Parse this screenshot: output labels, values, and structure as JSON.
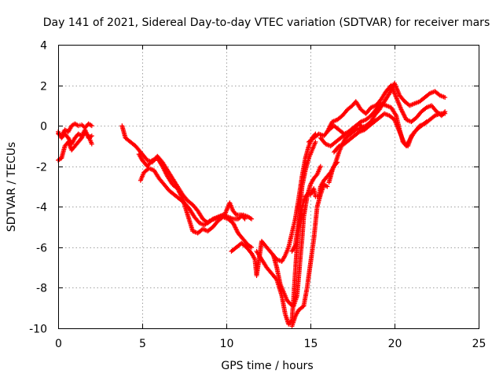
{
  "chart_data": {
    "type": "scatter",
    "title": "Day 141 of 2021, Sidereal Day-to-day VTEC variation (SDTVAR) for receiver mars",
    "xlabel": "GPS time / hours",
    "ylabel": "SDTVAR / TECUs",
    "xlim": [
      0,
      25
    ],
    "ylim": [
      -10,
      4
    ],
    "xticks": [
      "0",
      "5",
      "10",
      "15",
      "20",
      "25"
    ],
    "yticks": [
      "-10",
      "-8",
      "-6",
      "-4",
      "-2",
      "0",
      "2",
      "4"
    ],
    "grid": true,
    "marker": "plus",
    "color": "#ff0000",
    "series": [
      {
        "points": [
          [
            0.0,
            -0.4
          ],
          [
            0.2,
            -0.5
          ],
          [
            0.4,
            -0.2
          ],
          [
            0.6,
            -0.3
          ],
          [
            0.8,
            0.0
          ],
          [
            1.0,
            0.1
          ],
          [
            1.2,
            0.0
          ],
          [
            1.4,
            0.05
          ],
          [
            1.6,
            -0.1
          ],
          [
            1.8,
            0.1
          ],
          [
            2.0,
            0.0
          ]
        ]
      },
      {
        "points": [
          [
            0.0,
            -1.7
          ],
          [
            0.2,
            -1.6
          ],
          [
            0.4,
            -1.0
          ],
          [
            0.6,
            -0.8
          ],
          [
            0.8,
            -1.2
          ],
          [
            1.0,
            -1.0
          ],
          [
            1.2,
            -0.8
          ],
          [
            1.4,
            -0.6
          ],
          [
            1.6,
            -0.3
          ],
          [
            1.8,
            -0.5
          ],
          [
            2.0,
            -0.9
          ]
        ]
      },
      {
        "points": [
          [
            0.0,
            -0.3
          ],
          [
            0.2,
            -0.6
          ],
          [
            0.4,
            -0.4
          ],
          [
            0.6,
            -0.6
          ],
          [
            0.8,
            -0.9
          ],
          [
            1.0,
            -0.6
          ],
          [
            1.2,
            -0.4
          ],
          [
            1.4,
            -0.5
          ],
          [
            1.6,
            -0.2
          ],
          [
            1.8,
            -0.6
          ],
          [
            2.0,
            -0.5
          ]
        ]
      },
      {
        "points": [
          [
            3.8,
            0.0
          ],
          [
            4.0,
            -0.6
          ],
          [
            4.3,
            -0.8
          ],
          [
            4.6,
            -1.0
          ],
          [
            5.0,
            -1.4
          ],
          [
            5.3,
            -1.7
          ],
          [
            5.6,
            -1.8
          ],
          [
            5.9,
            -1.5
          ],
          [
            6.2,
            -1.8
          ],
          [
            6.5,
            -2.2
          ],
          [
            6.8,
            -2.6
          ],
          [
            7.1,
            -3.0
          ],
          [
            7.4,
            -3.4
          ],
          [
            7.7,
            -3.7
          ],
          [
            8.0,
            -3.9
          ],
          [
            8.3,
            -4.2
          ],
          [
            8.6,
            -4.6
          ],
          [
            8.9,
            -4.8
          ],
          [
            9.2,
            -4.6
          ],
          [
            9.5,
            -4.5
          ],
          [
            9.8,
            -4.4
          ],
          [
            10.1,
            -4.5
          ],
          [
            10.4,
            -4.6
          ],
          [
            10.7,
            -4.6
          ],
          [
            11.0,
            -4.4
          ],
          [
            11.3,
            -4.5
          ],
          [
            11.5,
            -4.6
          ]
        ]
      },
      {
        "points": [
          [
            4.8,
            -1.4
          ],
          [
            5.0,
            -1.7
          ],
          [
            5.3,
            -2.0
          ],
          [
            5.6,
            -1.7
          ],
          [
            5.9,
            -1.6
          ],
          [
            6.2,
            -2.0
          ],
          [
            6.5,
            -2.5
          ],
          [
            6.8,
            -2.9
          ],
          [
            7.1,
            -3.1
          ],
          [
            7.4,
            -3.6
          ],
          [
            7.7,
            -4.4
          ],
          [
            8.0,
            -5.2
          ],
          [
            8.3,
            -5.3
          ],
          [
            8.6,
            -5.1
          ],
          [
            8.9,
            -5.2
          ],
          [
            9.2,
            -5.0
          ],
          [
            9.5,
            -4.7
          ],
          [
            9.8,
            -4.5
          ],
          [
            10.1,
            -4.6
          ],
          [
            10.4,
            -4.8
          ],
          [
            10.7,
            -5.3
          ],
          [
            11.0,
            -5.6
          ],
          [
            11.3,
            -5.9
          ],
          [
            11.5,
            -6.0
          ]
        ]
      },
      {
        "points": [
          [
            4.9,
            -2.7
          ],
          [
            5.1,
            -2.3
          ],
          [
            5.4,
            -2.1
          ],
          [
            5.7,
            -2.2
          ],
          [
            6.0,
            -2.6
          ],
          [
            6.3,
            -2.9
          ],
          [
            6.6,
            -3.2
          ],
          [
            6.9,
            -3.4
          ],
          [
            7.2,
            -3.6
          ],
          [
            7.5,
            -3.8
          ],
          [
            7.8,
            -4.1
          ],
          [
            8.1,
            -4.5
          ],
          [
            8.4,
            -4.8
          ],
          [
            8.7,
            -4.9
          ],
          [
            9.0,
            -4.7
          ],
          [
            9.3,
            -4.6
          ],
          [
            9.6,
            -4.5
          ],
          [
            9.9,
            -4.4
          ],
          [
            10.2,
            -3.8
          ],
          [
            10.4,
            -4.2
          ],
          [
            10.6,
            -4.4
          ],
          [
            10.9,
            -4.4
          ],
          [
            11.1,
            -4.6
          ]
        ]
      },
      {
        "points": [
          [
            10.3,
            -6.2
          ],
          [
            10.6,
            -6.0
          ],
          [
            10.9,
            -5.8
          ],
          [
            11.2,
            -6.0
          ],
          [
            11.5,
            -6.3
          ],
          [
            11.7,
            -6.6
          ],
          [
            11.8,
            -7.4
          ],
          [
            12.1,
            -5.7
          ],
          [
            12.4,
            -6.0
          ],
          [
            12.7,
            -6.3
          ],
          [
            13.0,
            -6.6
          ],
          [
            13.3,
            -6.7
          ],
          [
            13.5,
            -6.4
          ],
          [
            13.7,
            -6.0
          ],
          [
            13.9,
            -5.3
          ],
          [
            14.1,
            -4.6
          ],
          [
            14.3,
            -3.6
          ],
          [
            14.5,
            -2.5
          ],
          [
            14.7,
            -1.6
          ],
          [
            14.9,
            -1.0
          ],
          [
            15.1,
            -0.6
          ],
          [
            15.3,
            -0.4
          ]
        ]
      },
      {
        "points": [
          [
            11.8,
            -6.2
          ],
          [
            12.1,
            -6.6
          ],
          [
            12.4,
            -7.0
          ],
          [
            12.7,
            -7.3
          ],
          [
            13.0,
            -7.6
          ],
          [
            13.3,
            -8.4
          ],
          [
            13.5,
            -9.3
          ],
          [
            13.7,
            -9.8
          ],
          [
            13.9,
            -9.6
          ],
          [
            14.0,
            -8.5
          ],
          [
            14.1,
            -7.2
          ],
          [
            14.2,
            -6.0
          ],
          [
            14.3,
            -5.0
          ],
          [
            14.4,
            -4.0
          ],
          [
            14.5,
            -3.0
          ],
          [
            14.7,
            -2.2
          ],
          [
            14.9,
            -1.6
          ],
          [
            15.1,
            -1.2
          ],
          [
            15.3,
            -0.8
          ]
        ]
      },
      {
        "points": [
          [
            12.8,
            -6.4
          ],
          [
            13.0,
            -7.0
          ],
          [
            13.2,
            -7.8
          ],
          [
            13.4,
            -8.2
          ],
          [
            13.6,
            -8.6
          ],
          [
            13.8,
            -8.8
          ],
          [
            14.0,
            -8.9
          ],
          [
            14.2,
            -8.4
          ],
          [
            14.3,
            -7.5
          ],
          [
            14.4,
            -6.5
          ],
          [
            14.5,
            -5.6
          ],
          [
            14.6,
            -4.5
          ],
          [
            14.8,
            -3.5
          ],
          [
            15.0,
            -2.9
          ],
          [
            15.2,
            -2.6
          ],
          [
            15.4,
            -2.4
          ],
          [
            15.6,
            -2.0
          ]
        ]
      },
      {
        "points": [
          [
            13.9,
            -6.2
          ],
          [
            14.1,
            -5.9
          ],
          [
            14.2,
            -5.3
          ],
          [
            14.4,
            -4.6
          ],
          [
            14.5,
            -4.0
          ],
          [
            14.7,
            -3.5
          ],
          [
            14.9,
            -3.3
          ],
          [
            15.0,
            -3.4
          ],
          [
            15.2,
            -3.1
          ],
          [
            15.3,
            -3.5
          ],
          [
            15.5,
            -3.5
          ],
          [
            15.6,
            -3.0
          ],
          [
            15.8,
            -2.7
          ],
          [
            16.0,
            -2.5
          ],
          [
            16.2,
            -2.3
          ],
          [
            16.4,
            -2.0
          ],
          [
            16.6,
            -1.8
          ]
        ]
      },
      {
        "points": [
          [
            13.9,
            -9.9
          ],
          [
            14.1,
            -9.4
          ],
          [
            14.3,
            -9.1
          ],
          [
            14.6,
            -8.9
          ],
          [
            14.8,
            -8.0
          ],
          [
            15.0,
            -6.8
          ],
          [
            15.2,
            -5.6
          ],
          [
            15.4,
            -4.0
          ],
          [
            15.6,
            -3.4
          ],
          [
            15.8,
            -2.9
          ],
          [
            16.0,
            -3.0
          ]
        ]
      },
      {
        "points": [
          [
            14.9,
            -0.8
          ],
          [
            15.2,
            -0.6
          ],
          [
            15.5,
            -0.4
          ],
          [
            15.8,
            -0.5
          ],
          [
            16.1,
            -0.2
          ],
          [
            16.4,
            0.0
          ],
          [
            16.7,
            -0.2
          ],
          [
            17.0,
            -0.4
          ],
          [
            17.3,
            -0.3
          ],
          [
            17.6,
            -0.1
          ],
          [
            17.9,
            0.1
          ],
          [
            18.2,
            -0.2
          ],
          [
            18.5,
            0.0
          ],
          [
            18.8,
            0.5
          ],
          [
            19.1,
            0.8
          ],
          [
            19.4,
            1.2
          ],
          [
            19.7,
            1.6
          ],
          [
            20.0,
            2.1
          ],
          [
            20.3,
            1.5
          ],
          [
            20.6,
            1.2
          ],
          [
            20.9,
            1.0
          ],
          [
            21.2,
            1.1
          ],
          [
            21.5,
            1.2
          ],
          [
            21.8,
            1.4
          ],
          [
            22.1,
            1.6
          ],
          [
            22.4,
            1.7
          ],
          [
            22.7,
            1.5
          ],
          [
            23.0,
            1.4
          ]
        ]
      },
      {
        "points": [
          [
            15.6,
            -0.6
          ],
          [
            15.9,
            -0.9
          ],
          [
            16.2,
            -1.0
          ],
          [
            16.5,
            -0.8
          ],
          [
            16.8,
            -0.6
          ],
          [
            17.1,
            -0.4
          ],
          [
            17.4,
            -0.2
          ],
          [
            17.7,
            0.0
          ],
          [
            18.0,
            0.2
          ],
          [
            18.3,
            0.3
          ],
          [
            18.6,
            0.5
          ],
          [
            18.9,
            0.8
          ],
          [
            19.2,
            1.1
          ],
          [
            19.5,
            1.0
          ],
          [
            19.8,
            0.9
          ],
          [
            20.1,
            0.5
          ],
          [
            20.3,
            -0.2
          ],
          [
            20.5,
            -0.8
          ],
          [
            20.7,
            -1.0
          ],
          [
            20.9,
            -0.7
          ],
          [
            21.2,
            -0.3
          ],
          [
            21.5,
            0.0
          ],
          [
            21.8,
            0.1
          ],
          [
            22.1,
            0.3
          ],
          [
            22.4,
            0.5
          ],
          [
            22.7,
            0.6
          ],
          [
            23.0,
            0.6
          ]
        ]
      },
      {
        "points": [
          [
            16.0,
            -0.3
          ],
          [
            16.3,
            0.2
          ],
          [
            16.6,
            0.3
          ],
          [
            16.9,
            0.5
          ],
          [
            17.2,
            0.8
          ],
          [
            17.5,
            1.0
          ],
          [
            17.7,
            1.2
          ],
          [
            18.0,
            0.8
          ],
          [
            18.3,
            0.6
          ],
          [
            18.6,
            0.9
          ],
          [
            18.9,
            1.0
          ],
          [
            19.2,
            1.3
          ],
          [
            19.5,
            1.7
          ],
          [
            19.8,
            2.0
          ],
          [
            20.1,
            1.4
          ],
          [
            20.4,
            0.8
          ],
          [
            20.7,
            0.3
          ],
          [
            21.0,
            0.2
          ],
          [
            21.3,
            0.4
          ],
          [
            21.6,
            0.7
          ],
          [
            21.9,
            0.9
          ],
          [
            22.2,
            1.0
          ],
          [
            22.5,
            0.7
          ],
          [
            22.8,
            0.5
          ],
          [
            23.0,
            0.7
          ]
        ]
      },
      {
        "points": [
          [
            16.4,
            -1.3
          ],
          [
            16.7,
            -1.0
          ],
          [
            17.0,
            -0.9
          ],
          [
            17.3,
            -0.7
          ],
          [
            17.6,
            -0.5
          ],
          [
            17.9,
            -0.3
          ],
          [
            18.2,
            -0.2
          ],
          [
            18.5,
            0.0
          ],
          [
            18.8,
            0.2
          ],
          [
            19.1,
            0.4
          ],
          [
            19.4,
            0.6
          ],
          [
            19.7,
            0.5
          ],
          [
            20.0,
            0.3
          ],
          [
            20.3,
            -0.3
          ],
          [
            20.6,
            -0.9
          ],
          [
            20.8,
            -1.0
          ],
          [
            21.0,
            -0.5
          ],
          [
            21.3,
            -0.2
          ],
          [
            21.6,
            0.0
          ],
          [
            21.9,
            0.2
          ]
        ]
      },
      {
        "points": [
          [
            16.1,
            -2.8
          ],
          [
            16.3,
            -2.2
          ],
          [
            16.5,
            -1.8
          ],
          [
            16.7,
            -1.3
          ],
          [
            16.9,
            -0.9
          ],
          [
            17.1,
            -0.6
          ],
          [
            17.4,
            -0.4
          ],
          [
            17.7,
            -0.2
          ],
          [
            18.0,
            -0.1
          ],
          [
            18.3,
            0.0
          ],
          [
            18.6,
            0.2
          ]
        ]
      }
    ]
  }
}
